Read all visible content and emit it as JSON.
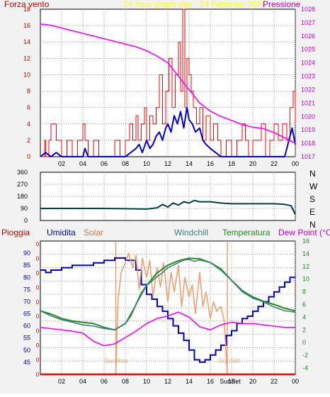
{
  "title": "24 hour graph day : 24 Febbraio 2022",
  "colors": {
    "background": "#f2f2f2",
    "plot_bg": "#ffffff",
    "frame": "#000000",
    "grid": "#9e9e9e",
    "wind": "#ff0000",
    "gust_avg": "#0000dd",
    "pressure": "#ff00ff",
    "wind_dir": "#004040",
    "rain": "#ff0000",
    "humidity": "#0000cc",
    "solar": "#f0a070",
    "windchill": "#408080",
    "temperature": "#228b22",
    "dewpoint": "#ff00ff",
    "sun_marker": "#f0a070",
    "title_color": "#ffff00",
    "label_left": "#cc0000",
    "label_right": "#cc00cc"
  },
  "chart_data": [
    {
      "type": "line",
      "panel": "wind",
      "title": "24 hour graph day : 24 Febbraio 2022",
      "left_label": "Forza vento",
      "right_label": "Pressione",
      "x_ticks": [
        "02",
        "04",
        "06",
        "08",
        "10",
        "12",
        "14",
        "16",
        "18",
        "20",
        "22",
        "00"
      ],
      "ylim_left": [
        0,
        18
      ],
      "y_ticks_left": [
        "0",
        "2",
        "4",
        "6",
        "8",
        "10",
        "12",
        "14",
        "16",
        "18"
      ],
      "ylim_right": [
        1017,
        1028
      ],
      "y_ticks_right": [
        "1017",
        "1018",
        "1019",
        "1020",
        "1021",
        "1022",
        "1023",
        "1024",
        "1025",
        "1026",
        "1027",
        "1028"
      ],
      "x_range_hours": [
        0,
        24
      ],
      "series": [
        {
          "key": "gust",
          "color": "#ff0000",
          "axis": "left",
          "x": [
            0,
            0.4,
            0.5,
            0.8,
            1.0,
            1.5,
            2.0,
            2.5,
            3.0,
            3.5,
            4.0,
            4.2,
            4.5,
            5.0,
            5.5,
            6.0,
            6.5,
            7.0,
            7.5,
            8.0,
            8.4,
            8.7,
            9.0,
            9.2,
            9.5,
            9.8,
            10.0,
            10.3,
            10.6,
            10.9,
            11.2,
            11.5,
            11.8,
            12.1,
            12.4,
            12.7,
            13.0,
            13.2,
            13.4,
            13.6,
            13.8,
            14.0,
            14.2,
            14.4,
            14.7,
            15.0,
            15.3,
            15.6,
            16.0,
            16.3,
            16.7,
            17.0,
            17.5,
            18.0,
            18.5,
            19.0,
            19.3,
            19.6,
            20.0,
            20.4,
            20.8,
            21.2,
            21.6,
            22.0,
            22.4,
            22.8,
            23.2,
            23.5,
            23.8,
            24.0
          ],
          "values": [
            0,
            2,
            0,
            2,
            4,
            2,
            0,
            2,
            0,
            2,
            4,
            2,
            0,
            2,
            0,
            0,
            0,
            2,
            0,
            2,
            4,
            2,
            5,
            2,
            4,
            6,
            2,
            5,
            4,
            6,
            10,
            4,
            8,
            12,
            6,
            10,
            14,
            8,
            18,
            6,
            12,
            10,
            8,
            6,
            4,
            6,
            2,
            5,
            2,
            4,
            2,
            0,
            2,
            0,
            2,
            4,
            2,
            0,
            2,
            2,
            4,
            0,
            2,
            4,
            2,
            4,
            2,
            6,
            8,
            4
          ]
        },
        {
          "key": "avg",
          "color": "#0000dd",
          "axis": "left",
          "x": [
            0,
            0.5,
            1.0,
            1.5,
            2.0,
            3.0,
            4.0,
            4.2,
            4.5,
            5.0,
            6.0,
            7.0,
            8.0,
            8.5,
            9.0,
            9.3,
            9.6,
            10.0,
            10.3,
            10.6,
            10.9,
            11.2,
            11.5,
            11.8,
            12.0,
            12.3,
            12.6,
            12.9,
            13.2,
            13.5,
            13.8,
            14.0,
            14.3,
            14.6,
            15.0,
            15.3,
            15.6,
            16.0,
            16.5,
            17.0,
            18.0,
            19.0,
            20.0,
            21.0,
            22.0,
            23.0,
            23.4,
            23.7,
            24.0
          ],
          "values": [
            0,
            0.5,
            0,
            0.5,
            0,
            0,
            0,
            1,
            0,
            0,
            0,
            0,
            0,
            0.5,
            1,
            1.5,
            0.5,
            2,
            1,
            1.5,
            2.5,
            3,
            2,
            3.5,
            4,
            3,
            5,
            4,
            5.5,
            3.5,
            6,
            4.5,
            4,
            3,
            3.5,
            2,
            1.5,
            1,
            0.5,
            0,
            0,
            0,
            0,
            0,
            0,
            0,
            2,
            3.5,
            1.5
          ]
        },
        {
          "key": "pressure",
          "color": "#ff00ff",
          "axis": "right",
          "x": [
            0,
            1,
            2,
            3,
            4,
            5,
            6,
            7,
            8,
            9,
            10,
            11,
            12,
            13,
            14,
            15,
            16,
            17,
            18,
            19,
            20,
            21,
            22,
            23,
            24
          ],
          "values": [
            1026.9,
            1026.8,
            1026.6,
            1026.4,
            1026.2,
            1026.0,
            1025.8,
            1025.6,
            1025.4,
            1025.2,
            1024.9,
            1024.5,
            1024.0,
            1023.0,
            1022.0,
            1021.0,
            1020.4,
            1020.0,
            1019.7,
            1019.4,
            1019.2,
            1019.1,
            1018.8,
            1018.4,
            1018.0
          ]
        }
      ]
    },
    {
      "type": "line",
      "panel": "direction",
      "ylim": [
        0,
        360
      ],
      "y_ticks": [
        "0",
        "90",
        "180",
        "270",
        "360"
      ],
      "compass": [
        "N",
        "W",
        "S",
        "E",
        "N"
      ],
      "series": [
        {
          "key": "direction",
          "color": "#004040",
          "x": [
            0,
            2,
            4,
            6,
            8,
            10,
            11,
            11.5,
            12,
            12.5,
            13,
            13.5,
            14,
            14.5,
            15,
            16,
            17,
            18,
            20,
            22,
            23,
            23.6,
            24
          ],
          "values": [
            90,
            90,
            90,
            90,
            88,
            85,
            95,
            120,
            100,
            130,
            115,
            140,
            130,
            150,
            140,
            140,
            130,
            125,
            125,
            125,
            120,
            110,
            45
          ]
        }
      ]
    },
    {
      "type": "line",
      "panel": "weather",
      "labels": {
        "rain": "Pioggia",
        "humidity": "Umidita",
        "solar": "Solar",
        "windchill": "Windchill",
        "temperature": "Temperatura",
        "dewpoint": "Dew Point (°C)"
      },
      "ylim_left": [
        40,
        95
      ],
      "y_ticks_left": [
        "45",
        "50",
        "55",
        "60",
        "65",
        "70",
        "75",
        "80",
        "85",
        "90"
      ],
      "ylim_right": [
        -5,
        16
      ],
      "y_ticks_right": [
        "-4",
        "-2",
        "0",
        "2",
        "4",
        "6",
        "8",
        "10",
        "12",
        "14",
        "16"
      ],
      "x_ticks": [
        "02",
        "04",
        "06",
        "08",
        "10",
        "12",
        "14",
        "16",
        "18",
        "20",
        "22",
        "00"
      ],
      "sun_marker_text": "SunSet",
      "sunrise_label": "SunRise",
      "sunset_label": "SunSet",
      "sunrise_hour": 7.1,
      "sunset_hour": 17.6,
      "series": [
        {
          "key": "humidity",
          "color": "#0000cc",
          "axis": "left",
          "x": [
            0,
            0.5,
            1,
            2,
            3,
            4,
            5,
            6,
            7,
            8,
            9,
            9.5,
            10,
            10.5,
            11,
            11.5,
            12,
            12.5,
            13,
            13.5,
            14,
            14.5,
            15,
            15.5,
            16,
            16.5,
            17,
            17.5,
            18,
            18.5,
            19,
            19.5,
            20,
            20.5,
            21,
            21.5,
            22,
            22.5,
            23,
            23.5,
            24
          ],
          "values": [
            83,
            82,
            83,
            84,
            85,
            85,
            86,
            87,
            88,
            87,
            83,
            77,
            73,
            71,
            68,
            66,
            63,
            60,
            57,
            54,
            50,
            46,
            45,
            46,
            48,
            50,
            52,
            56,
            58,
            61,
            63,
            64,
            66,
            68,
            70,
            72,
            74,
            76,
            78,
            80,
            80
          ]
        },
        {
          "key": "solar",
          "color": "#f0a070",
          "axis": "left",
          "x": [
            7.1,
            7.3,
            7.6,
            8.0,
            8.3,
            8.7,
            9.0,
            9.3,
            9.6,
            10.0,
            10.3,
            10.6,
            11.0,
            11.3,
            11.6,
            12.0,
            12.3,
            12.6,
            13.0,
            13.3,
            13.6,
            14.0,
            14.3,
            14.6,
            15.0,
            15.3,
            15.6,
            16.0,
            16.3,
            16.6,
            17.0,
            17.3,
            17.6
          ],
          "values": [
            40,
            70,
            82,
            86,
            90,
            84,
            89,
            75,
            88,
            80,
            87,
            72,
            84,
            76,
            86,
            70,
            82,
            74,
            85,
            68,
            80,
            72,
            77,
            65,
            82,
            68,
            74,
            63,
            70,
            66,
            68,
            62,
            40
          ]
        },
        {
          "key": "temperature",
          "color": "#228b22",
          "axis": "right",
          "x": [
            0,
            1,
            2,
            3,
            4,
            5,
            6,
            7,
            8,
            8.5,
            9,
            9.5,
            10,
            10.5,
            11,
            12,
            13,
            14,
            15,
            16,
            17,
            18,
            19,
            20,
            21,
            22,
            23,
            24
          ],
          "values": [
            5,
            4.5,
            3.8,
            3.4,
            3.2,
            3.0,
            2.4,
            2.0,
            3.0,
            4.2,
            6.0,
            7.8,
            9.0,
            10.0,
            11.0,
            12.2,
            12.9,
            13.3,
            13.2,
            12.6,
            11.6,
            9.8,
            8.2,
            7.2,
            6.5,
            6.0,
            5.4,
            5.0
          ]
        },
        {
          "key": "windchill",
          "color": "#408080",
          "axis": "right",
          "x": [
            0,
            1,
            2,
            3,
            4,
            5,
            6,
            7,
            8,
            9,
            10,
            11,
            11.5,
            12,
            12.5,
            13,
            13.5,
            14,
            14.5,
            15,
            16,
            17,
            18,
            19,
            20,
            21,
            22,
            23,
            24
          ],
          "values": [
            5,
            4.2,
            3.6,
            3.2,
            2.8,
            2.6,
            2.2,
            2.0,
            3.0,
            6.0,
            9.0,
            10.4,
            11.0,
            11.8,
            12.2,
            12.6,
            13.0,
            13.1,
            12.8,
            13.0,
            12.6,
            11.4,
            9.8,
            8.0,
            7.0,
            6.4,
            5.6,
            5.0,
            4.8
          ]
        },
        {
          "key": "dewpoint",
          "color": "#ff00ff",
          "axis": "right",
          "x": [
            0,
            1,
            2,
            3,
            4,
            5,
            6,
            7,
            8,
            9,
            10,
            11,
            12,
            13,
            14,
            15,
            16,
            17,
            18,
            19,
            20,
            21,
            22,
            23,
            24
          ],
          "values": [
            2.4,
            2.2,
            2.0,
            1.8,
            1.5,
            0.2,
            -0.5,
            -0.2,
            0.8,
            1.8,
            3.0,
            3.8,
            4.2,
            4.8,
            4.0,
            2.5,
            2.0,
            2.8,
            3.2,
            3.0,
            3.0,
            2.8,
            2.6,
            2.4,
            2.4
          ]
        },
        {
          "key": "rain",
          "color": "#ff0000",
          "axis": "left",
          "x": [
            0,
            24
          ],
          "values": [
            40,
            40
          ]
        }
      ]
    }
  ]
}
